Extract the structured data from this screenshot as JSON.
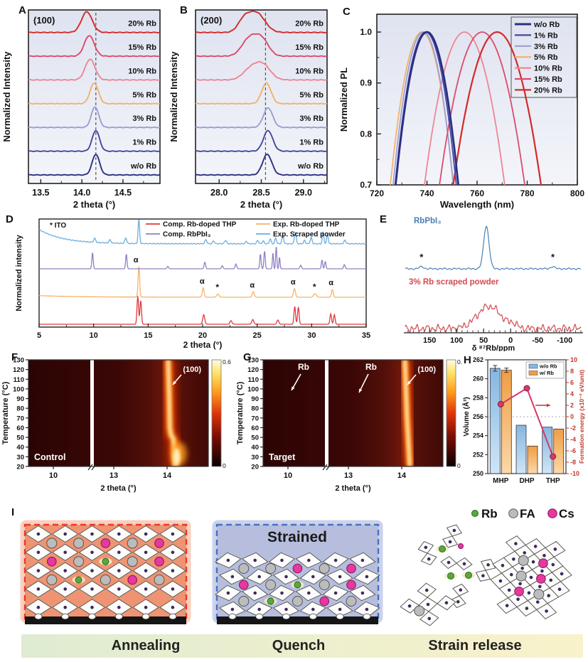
{
  "chart_data": [
    {
      "id": "A",
      "panel_label": "A",
      "type": "line",
      "annotation": "(100)",
      "xlabel": "2 theta (°)",
      "ylabel": "Normalized Intensity",
      "xticks": [
        "13.5",
        "14.0",
        "14.5"
      ],
      "xtick_vals": [
        13.5,
        14.0,
        14.5
      ],
      "xrange": [
        13.35,
        14.95
      ],
      "dashed_x": 14.17,
      "traces": [
        {
          "label": "w/o Rb",
          "color": "#2b2f82",
          "peaks": [
            [
              14.17,
              0.045,
              1
            ]
          ]
        },
        {
          "label": "1% Rb",
          "color": "#44489e",
          "peaks": [
            [
              14.17,
              0.045,
              1
            ]
          ]
        },
        {
          "label": "3% Rb",
          "color": "#9aa0d2",
          "peaks": [
            [
              14.16,
              0.045,
              1
            ]
          ]
        },
        {
          "label": "5% Rb",
          "color": "#f2b26c",
          "peaks": [
            [
              14.15,
              0.05,
              1
            ]
          ]
        },
        {
          "label": "10% Rb",
          "color": "#ee8693",
          "peaks": [
            [
              14.1,
              0.06,
              1
            ]
          ]
        },
        {
          "label": "15% Rb",
          "color": "#dd4a6b",
          "peaks": [
            [
              14.09,
              0.06,
              1
            ]
          ]
        },
        {
          "label": "20% Rb",
          "color": "#d42a2a",
          "peaks": [
            [
              14.06,
              0.065,
              1
            ]
          ]
        }
      ]
    },
    {
      "id": "B",
      "panel_label": "B",
      "type": "line",
      "annotation": "(200)",
      "xlabel": "2 theta (°)",
      "ylabel": "Normalized Intensity",
      "xticks": [
        "28.0",
        "28.5",
        "29.0"
      ],
      "xtick_vals": [
        28.0,
        28.5,
        29.0
      ],
      "xrange": [
        27.72,
        29.28
      ],
      "dashed_x": 28.55,
      "traces": [
        {
          "label": "w/o Rb",
          "color": "#2b2f82",
          "peaks": [
            [
              28.57,
              0.055,
              1
            ]
          ]
        },
        {
          "label": "1% Rb",
          "color": "#44489e",
          "peaks": [
            [
              28.58,
              0.055,
              1
            ]
          ]
        },
        {
          "label": "3% Rb",
          "color": "#9aa0d2",
          "peaks": [
            [
              28.58,
              0.055,
              0.95
            ]
          ]
        },
        {
          "label": "5% Rb",
          "color": "#f2b26c",
          "peaks": [
            [
              28.56,
              0.055,
              1
            ]
          ]
        },
        {
          "label": "10% Rb",
          "color": "#ee8693",
          "peaks": [
            [
              28.52,
              0.09,
              0.7
            ],
            [
              28.37,
              0.09,
              0.5
            ]
          ]
        },
        {
          "label": "15% Rb",
          "color": "#dd4a6b",
          "peaks": [
            [
              28.36,
              0.09,
              0.85
            ],
            [
              28.51,
              0.08,
              0.75
            ]
          ]
        },
        {
          "label": "20% Rb",
          "color": "#d42a2a",
          "peaks": [
            [
              28.44,
              0.1,
              0.95
            ],
            [
              28.29,
              0.07,
              0.5
            ]
          ]
        }
      ]
    },
    {
      "id": "C",
      "panel_label": "C",
      "type": "line",
      "xlabel": "Wavelength (nm)",
      "ylabel": "Normalized PL",
      "xticks": [
        "720",
        "740",
        "760",
        "780",
        "800"
      ],
      "xtick_vals": [
        720,
        740,
        760,
        780,
        800
      ],
      "yticks": [
        "1.0",
        "0.9",
        "0.8",
        "0.7"
      ],
      "ytick_vals": [
        1.0,
        0.9,
        0.8,
        0.7
      ],
      "xrange": [
        720,
        800
      ],
      "yrange": [
        0.7,
        1.035
      ],
      "series": [
        {
          "label": "w/o Rb",
          "color": "#2b2f82",
          "peak_nm": 740,
          "halfwidth": 12.5,
          "lw": 2.8
        },
        {
          "label": "1% Rb",
          "color": "#44489e",
          "peak_nm": 739.5,
          "halfwidth": 12.2,
          "lw": 1.8
        },
        {
          "label": "3% Rb",
          "color": "#9aa0d2",
          "peak_nm": 738.5,
          "halfwidth": 12,
          "lw": 1.8
        },
        {
          "label": "5% Rb",
          "color": "#f2b26c",
          "peak_nm": 738,
          "halfwidth": 12.6,
          "lw": 1.8
        },
        {
          "label": "10% Rb",
          "color": "#ee8693",
          "peak_nm": 755,
          "halfwidth": 16,
          "lw": 1.8
        },
        {
          "label": "15% Rb",
          "color": "#dd4a6b",
          "peak_nm": 762,
          "halfwidth": 17,
          "lw": 1.8
        },
        {
          "label": "20% Rb",
          "color": "#d42a2a",
          "peak_nm": 768,
          "halfwidth": 17.5,
          "lw": 2.2
        }
      ]
    },
    {
      "id": "D",
      "panel_label": "D",
      "type": "line",
      "note": "* ITO",
      "xlabel": "2 theta (°)",
      "ylabel": "Normalized intensity",
      "xticks": [
        "5",
        "10",
        "15",
        "20",
        "25",
        "30",
        "35"
      ],
      "xtick_vals": [
        5,
        10,
        15,
        20,
        25,
        30,
        35
      ],
      "xrange": [
        5,
        35
      ],
      "legend": [
        {
          "label": "Comp. Rb-doped THP",
          "color": "#e03a3e"
        },
        {
          "label": "Exp. Rb-doped THP",
          "color": "#f6b26b"
        },
        {
          "label": "Comp. RbPbI₃",
          "color": "#9180c4"
        },
        {
          "label": "Exp. Scraped powder",
          "color": "#6aaede"
        }
      ],
      "alpha_symbol": "α",
      "star_symbol": "*",
      "alpha_marks": [
        [
          13.88,
          1.02
        ],
        [
          19.95,
          0.34
        ],
        [
          24.55,
          0.22
        ],
        [
          28.3,
          0.32
        ],
        [
          31.78,
          0.29
        ]
      ],
      "star_marks": [
        [
          21.35,
          0.14
        ],
        [
          30.25,
          0.15
        ]
      ],
      "traces": [
        {
          "name": "Comp. Rb-doped THP",
          "color": "#e03a3e",
          "peaks": [
            [
              14.05,
              0.07,
              0.95
            ],
            [
              14.32,
              0.07,
              0.8
            ],
            [
              20.1,
              0.09,
              0.32
            ],
            [
              22.6,
              0.09,
              0.12
            ],
            [
              24.6,
              0.09,
              0.16
            ],
            [
              26.9,
              0.09,
              0.14
            ],
            [
              28.45,
              0.07,
              0.6
            ],
            [
              28.78,
              0.07,
              0.58
            ],
            [
              31.75,
              0.07,
              0.35
            ],
            [
              32.08,
              0.07,
              0.32
            ]
          ]
        },
        {
          "name": "Exp. Rb-doped THP",
          "color": "#f6b26b",
          "peaks": [
            [
              14.15,
              0.07,
              1.0
            ],
            [
              20.05,
              0.08,
              0.3
            ],
            [
              21.4,
              0.11,
              0.1
            ],
            [
              24.65,
              0.09,
              0.18
            ],
            [
              28.42,
              0.09,
              0.28
            ],
            [
              30.3,
              0.13,
              0.11
            ],
            [
              31.9,
              0.08,
              0.25
            ]
          ]
        },
        {
          "name": "Comp. RbPbI₃",
          "color": "#9180c4",
          "peaks": [
            [
              9.9,
              0.06,
              0.55
            ],
            [
              13.0,
              0.06,
              0.5
            ],
            [
              16.8,
              0.07,
              0.08
            ],
            [
              20.2,
              0.07,
              0.22
            ],
            [
              21.8,
              0.07,
              0.1
            ],
            [
              23.05,
              0.07,
              0.16
            ],
            [
              25.3,
              0.06,
              0.5
            ],
            [
              25.68,
              0.06,
              0.6
            ],
            [
              26.45,
              0.05,
              0.55
            ],
            [
              26.75,
              0.05,
              0.78
            ],
            [
              27.05,
              0.05,
              0.4
            ],
            [
              29.0,
              0.07,
              0.12
            ],
            [
              30.95,
              0.06,
              0.3
            ],
            [
              31.25,
              0.06,
              0.25
            ],
            [
              33.0,
              0.07,
              0.14
            ]
          ]
        },
        {
          "name": "Exp. Scraped powder",
          "color": "#6aaede",
          "peaks": [
            [
              10.1,
              0.09,
              0.14
            ],
            [
              11.5,
              0.09,
              0.11
            ],
            [
              12.95,
              0.08,
              0.2
            ],
            [
              14.15,
              0.07,
              0.85
            ],
            [
              20.3,
              0.09,
              0.14
            ],
            [
              21.0,
              0.09,
              0.1
            ],
            [
              22.1,
              0.09,
              0.12
            ],
            [
              24.0,
              0.09,
              0.08
            ],
            [
              25.05,
              0.08,
              0.12
            ],
            [
              25.55,
              0.08,
              0.1
            ],
            [
              26.2,
              0.08,
              0.17
            ],
            [
              26.7,
              0.08,
              0.2
            ],
            [
              27.35,
              0.08,
              0.3
            ],
            [
              28.5,
              0.08,
              0.42
            ],
            [
              29.35,
              0.08,
              0.12
            ],
            [
              29.95,
              0.08,
              0.22
            ],
            [
              31.05,
              0.07,
              0.42
            ],
            [
              31.45,
              0.07,
              0.34
            ],
            [
              33.05,
              0.09,
              0.12
            ]
          ]
        }
      ]
    },
    {
      "id": "E",
      "panel_label": "E",
      "type": "line",
      "xlabel": "δ ⁸⁷Rb/ppm",
      "star_symbol": "*",
      "xticks": [
        "150",
        "100",
        "50",
        "0",
        "-50",
        "-100"
      ],
      "xtick_vals": [
        150,
        100,
        50,
        0,
        -50,
        -100
      ],
      "xrange": [
        195,
        -130
      ],
      "traces": [
        {
          "label": "RbPbI₃",
          "color": "#4a7fb5",
          "main_peak_ppm": 45,
          "star_ppm": [
            165,
            -78
          ]
        },
        {
          "label": "3% Rb scraped powder",
          "color": "#d44a52",
          "main_peak_ppm": 40
        }
      ]
    },
    {
      "id": "F",
      "panel_label": "F",
      "type": "heatmap",
      "title": "Control",
      "xlabel": "2 theta (°)",
      "ylabel": "Temperature (°C)",
      "yticks": [
        20,
        30,
        40,
        50,
        60,
        70,
        80,
        90,
        100,
        110,
        120,
        130
      ],
      "xticks": [
        "10",
        "13",
        "14"
      ],
      "xtick_vals": [
        10,
        13,
        14
      ],
      "colorbar_max": "0.6",
      "colorbar_min": "0",
      "annotation": "(100)",
      "band": [
        [
          130,
          14.02
        ],
        [
          90,
          14.04
        ],
        [
          60,
          14.05
        ],
        [
          53,
          14.07
        ],
        [
          48,
          14.12
        ],
        [
          35,
          14.14
        ],
        [
          20,
          14.15
        ]
      ],
      "streaks": [],
      "blob": true
    },
    {
      "id": "G",
      "panel_label": "G",
      "type": "heatmap",
      "title": "Target",
      "xlabel": "2 theta (°)",
      "ylabel": "Temperature (°C)",
      "yticks": [
        20,
        30,
        40,
        50,
        60,
        70,
        80,
        90,
        100,
        110,
        120,
        130
      ],
      "xticks": [
        "10",
        "13",
        "14"
      ],
      "xtick_vals": [
        10,
        13,
        14
      ],
      "colorbar_max": "0.6",
      "colorbar_min": "0",
      "annotation": "(100)",
      "rb_label": "Rb",
      "band": [
        [
          130,
          14.06
        ],
        [
          100,
          14.08
        ],
        [
          70,
          14.1
        ],
        [
          40,
          14.13
        ],
        [
          20,
          14.15
        ]
      ],
      "streaks": [
        {
          "theta": 10,
          "t1": 65,
          "t2": 115
        },
        {
          "theta": 13.15,
          "t1": 70,
          "t2": 113
        }
      ],
      "blob": false
    },
    {
      "id": "H",
      "panel_label": "H",
      "type": "bar",
      "categories": [
        "MHP",
        "DHP",
        "THP"
      ],
      "ylabel_left": "Volume (Å³)",
      "ylabel_right": "Formation energy (x10⁻² eV/unit)",
      "yticks_left": [
        250,
        252,
        254,
        256,
        258,
        260,
        262
      ],
      "yticks_right": [
        -10,
        -8,
        -6,
        -4,
        -2,
        0,
        2,
        4,
        6,
        8,
        10
      ],
      "ylim_left": [
        250,
        262
      ],
      "ylim_right": [
        -10,
        10
      ],
      "series": [
        {
          "name": "w/o Rb",
          "color": "#85b7e0",
          "color_light": "#cfe6f5",
          "values": [
            261.1,
            255.1,
            254.9
          ]
        },
        {
          "name": "w/ Rb",
          "color": "#f09d44",
          "color_light": "#fbd9a8",
          "values": [
            260.9,
            252.9,
            254.7
          ]
        }
      ],
      "formation_energy": {
        "color": "#d13b6a",
        "values": [
          2.2,
          5.0,
          -7.0
        ]
      },
      "axis_right_color": "#c0392b"
    },
    {
      "id": "I",
      "panel_label": "I",
      "type": "schematic",
      "legend": [
        {
          "label": "Rb",
          "color": "#5aa83c"
        },
        {
          "label": "FA",
          "color": "#bcbcbc"
        },
        {
          "label": "Cs",
          "color": "#e5399e"
        }
      ],
      "stages": [
        {
          "name": "Annealing",
          "box_fill": "#ef9472",
          "border": "#e8392b",
          "sites": [
            [
              "FA",
              "FA",
              "Cs",
              "FA",
              "Cs"
            ],
            [
              "Cs",
              "FA",
              "Rb",
              "FA",
              "Cs"
            ],
            [
              "FA",
              "Rb",
              "FA",
              "Cs",
              "FA"
            ]
          ]
        },
        {
          "name": "Quench",
          "box_fill": "#b7bedd",
          "border": "#4472c4",
          "title": "Strained",
          "sites": [
            [
              "FA",
              "FA",
              "Cs",
              "FA",
              "Cs"
            ],
            [
              "Cs",
              "FA",
              "Rb",
              "FA",
              "Cs"
            ],
            [
              "FA",
              "Rb",
              "FA",
              "Cs",
              "FA"
            ]
          ]
        },
        {
          "name": "Strain release"
        }
      ],
      "clusters": [
        {
          "x": 636,
          "y": 44,
          "rot": 20,
          "shape": "pair_v"
        },
        {
          "x": 601,
          "y": 68,
          "rot": -15,
          "shape": "pair_v"
        },
        {
          "x": 642,
          "y": 82,
          "rot": 5,
          "shape": "pair_h"
        },
        {
          "x": 683,
          "y": 92,
          "rot": 25,
          "shape": "pair_v"
        },
        {
          "x": 646,
          "y": 128,
          "rot": 12,
          "shape": "pair_v"
        },
        {
          "x": 602,
          "y": 140,
          "rot": -5,
          "shape": "plus",
          "circles": [
            {
              "dx": -13,
              "dy": 8,
              "t": "FA"
            }
          ]
        },
        {
          "x": 747,
          "y": 102,
          "rot": 8,
          "shape": "block",
          "circles": [
            {
              "dx": -14,
              "dy": -22,
              "t": "FA"
            },
            {
              "dx": 14,
              "dy": -22,
              "t": "Cs"
            },
            {
              "dx": -14,
              "dy": 0,
              "t": "FA"
            },
            {
              "dx": 14,
              "dy": 0,
              "t": "Cs"
            },
            {
              "dx": -14,
              "dy": 22,
              "t": "Cs"
            },
            {
              "dx": 14,
              "dy": 22,
              "t": "FA"
            }
          ]
        }
      ],
      "free_dots": [
        {
          "x": 622,
          "y": 62,
          "t": "Rb"
        },
        {
          "x": 648,
          "y": 58,
          "t": "Cs",
          "r": 3.5
        },
        {
          "x": 634,
          "y": 100,
          "t": "Rb"
        },
        {
          "x": 659,
          "y": 99,
          "t": "Rb"
        }
      ],
      "banner": {
        "labels": [
          "Annealing",
          "Quench",
          "Strain release"
        ],
        "from": "#dfecd2",
        "to": "#f9f2ca"
      }
    }
  ]
}
